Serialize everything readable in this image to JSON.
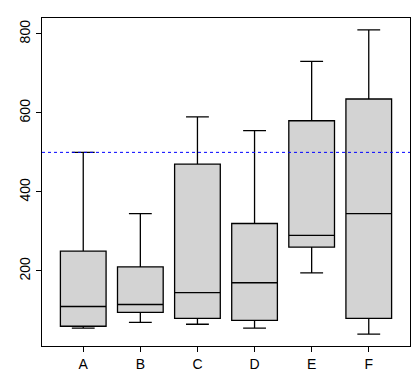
{
  "chart_data": {
    "type": "box",
    "categories": [
      "A",
      "B",
      "C",
      "D",
      "E",
      "F"
    ],
    "boxes": [
      {
        "min": 55,
        "q1": 60,
        "median": 110,
        "q3": 250,
        "max": 500
      },
      {
        "min": 70,
        "q1": 95,
        "median": 115,
        "q3": 210,
        "max": 345
      },
      {
        "min": 65,
        "q1": 80,
        "median": 145,
        "q3": 470,
        "max": 590
      },
      {
        "min": 55,
        "q1": 75,
        "median": 170,
        "q3": 320,
        "max": 555
      },
      {
        "min": 195,
        "q1": 260,
        "median": 290,
        "q3": 580,
        "max": 730
      },
      {
        "min": 40,
        "q1": 80,
        "median": 345,
        "q3": 635,
        "max": 810
      }
    ],
    "color": "#d3d3d3",
    "ylim": [
      10,
      840
    ],
    "yticks": [
      200,
      400,
      600,
      800
    ],
    "grid": false,
    "reference_lines": [
      {
        "value": 500,
        "color": "#0000ff",
        "line_style": "dotted"
      }
    ]
  }
}
